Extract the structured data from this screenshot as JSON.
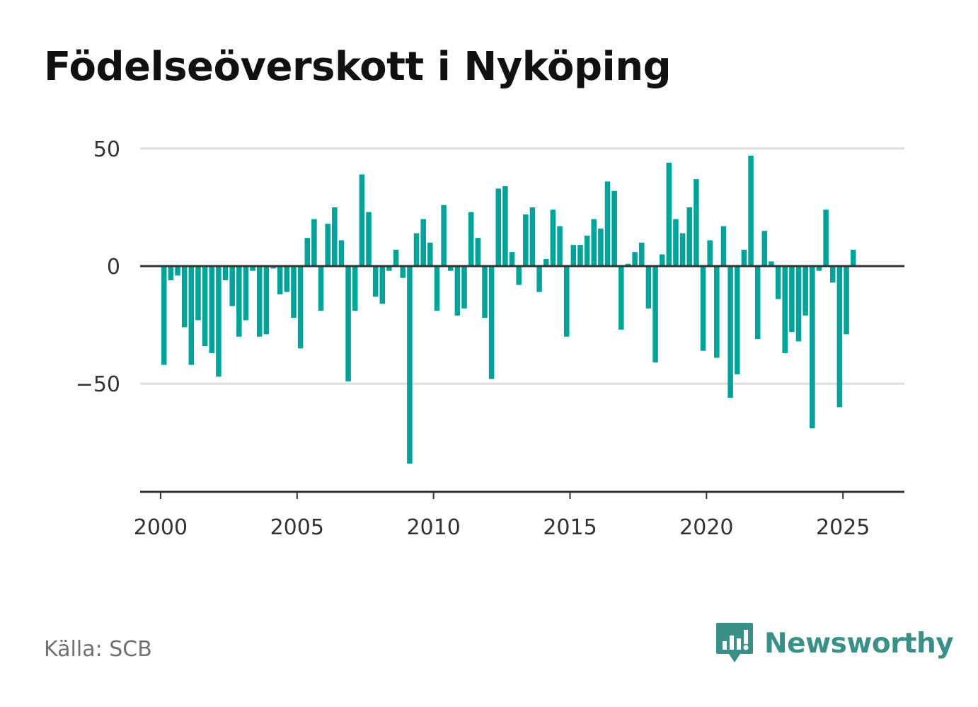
{
  "title": "Födelseöverskott i Nyköping",
  "source": "Källa: SCB",
  "brand": {
    "name": "Newsworthy",
    "icon": "newsworthy-logo-icon",
    "color": "#3a8f89"
  },
  "colors": {
    "bar": "#00a39a",
    "grid": "#dddddd",
    "axis": "#333333"
  },
  "chart_data": {
    "type": "bar",
    "title": "Födelseöverskott i Nyköping",
    "xlabel": "",
    "ylabel": "",
    "frequency": "quarterly",
    "start": "2000-Q1",
    "x_ticks": [
      "2000",
      "2005",
      "2010",
      "2015",
      "2020",
      "2025"
    ],
    "y_ticks": [
      50,
      0,
      -50
    ],
    "y_tick_labels": [
      "50",
      "0",
      "−50"
    ],
    "ylim": [
      -96,
      56
    ],
    "xlim": [
      1999.25,
      2027.25
    ],
    "grid": true,
    "legend": "none",
    "values": [
      -42,
      -6,
      -4,
      -26,
      -42,
      -23,
      -34,
      -37,
      -47,
      -6,
      -17,
      -30,
      -23,
      -2,
      -30,
      -29,
      -1,
      -12,
      -11,
      -22,
      -35,
      12,
      20,
      -19,
      18,
      25,
      11,
      -49,
      -19,
      39,
      23,
      -13,
      -16,
      -2,
      7,
      -5,
      -84,
      14,
      20,
      10,
      -19,
      26,
      -2,
      -21,
      -18,
      23,
      12,
      -22,
      -48,
      33,
      34,
      6,
      -8,
      22,
      25,
      -11,
      3,
      24,
      17,
      -30,
      9,
      9,
      13,
      20,
      16,
      36,
      32,
      -27,
      1,
      6,
      10,
      -18,
      -41,
      5,
      44,
      20,
      14,
      25,
      37,
      -36,
      11,
      -39,
      17,
      -56,
      -46,
      7,
      47,
      -31,
      15,
      2,
      -14,
      -37,
      -28,
      -32,
      -21,
      -69,
      -2,
      24,
      -7,
      -60,
      -29,
      7
    ]
  }
}
